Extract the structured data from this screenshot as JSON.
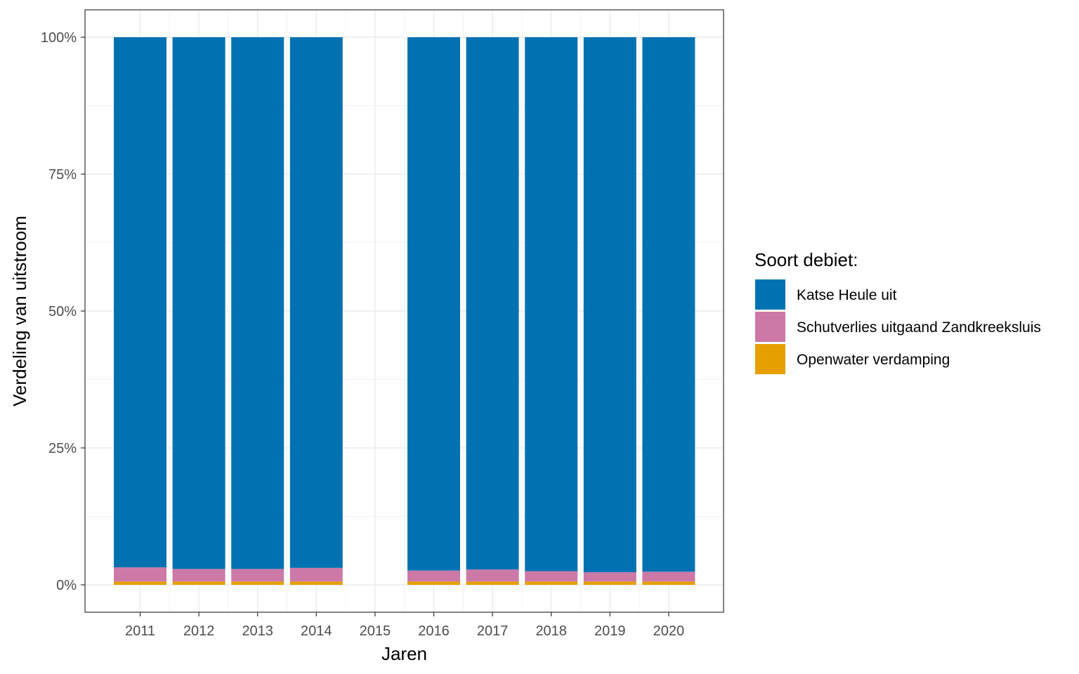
{
  "chart_data": {
    "type": "bar",
    "stacked": true,
    "normalized": true,
    "title": "",
    "xlabel": "Jaren",
    "ylabel": "Verdeling van uitstroom",
    "categories": [
      "2011",
      "2012",
      "2013",
      "2014",
      "2015",
      "2016",
      "2017",
      "2018",
      "2019",
      "2020"
    ],
    "ylim": [
      0,
      100
    ],
    "y_ticks": [
      0,
      25,
      50,
      75,
      100
    ],
    "y_tick_labels": [
      "0%",
      "25%",
      "50%",
      "75%",
      "100%"
    ],
    "grid": true,
    "legend_position": "right",
    "legend_title": "Soort debiet:",
    "series": [
      {
        "name": "Openwater verdamping",
        "color": "#E69F00",
        "values": [
          0.6,
          0.6,
          0.6,
          0.6,
          null,
          0.6,
          0.6,
          0.6,
          0.6,
          0.6
        ]
      },
      {
        "name": "Schutverlies uitgaand Zandkreeksluis",
        "color": "#CC79A7",
        "values": [
          2.6,
          2.3,
          2.3,
          2.5,
          null,
          2.0,
          2.2,
          1.9,
          1.7,
          1.8
        ]
      },
      {
        "name": "Katse Heule uit",
        "color": "#0072B2",
        "values": [
          96.8,
          97.1,
          97.1,
          96.9,
          null,
          97.4,
          97.2,
          97.5,
          97.7,
          97.6
        ]
      }
    ],
    "legend_order": [
      "Katse Heule uit",
      "Schutverlies uitgaand Zandkreeksluis",
      "Openwater verdamping"
    ]
  }
}
